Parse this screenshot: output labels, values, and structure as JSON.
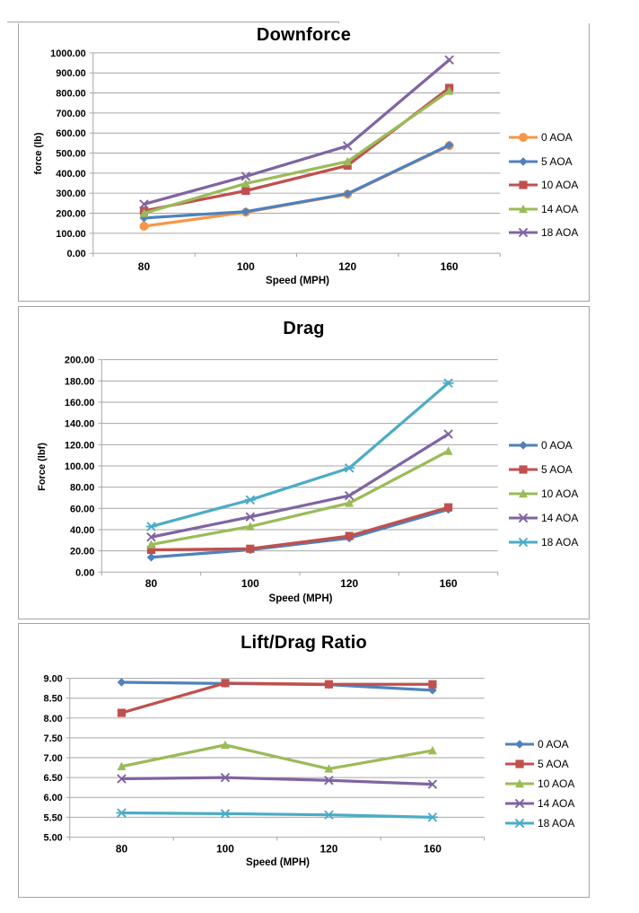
{
  "chart_data": [
    {
      "type": "line",
      "title": "Downforce",
      "xlabel": "Speed (MPH)",
      "ylabel": "force (lb)",
      "categories": [
        "80",
        "100",
        "120",
        "160"
      ],
      "ylim": [
        0,
        1000
      ],
      "ytick_step": 100,
      "ytick_decimals": 2,
      "grid": true,
      "legend_position": "right",
      "series": [
        {
          "name": "0 AOA",
          "color": "#F79646",
          "marker": "circle",
          "values": [
            135,
            205,
            295,
            537
          ]
        },
        {
          "name": "5 AOA",
          "color": "#4F81BD",
          "marker": "diamond",
          "values": [
            176,
            208,
            297,
            540
          ]
        },
        {
          "name": "10 AOA",
          "color": "#C0504D",
          "marker": "square",
          "values": [
            212,
            312,
            438,
            825
          ]
        },
        {
          "name": "14 AOA",
          "color": "#9BBB59",
          "marker": "triangle",
          "values": [
            200,
            348,
            458,
            810
          ]
        },
        {
          "name": "18 AOA",
          "color": "#8064A2",
          "marker": "x",
          "values": [
            245,
            384,
            536,
            965
          ]
        }
      ]
    },
    {
      "type": "line",
      "title": "Drag",
      "xlabel": "Speed (MPH)",
      "ylabel": "Force (lbf)",
      "categories": [
        "80",
        "100",
        "120",
        "160"
      ],
      "ylim": [
        0,
        200
      ],
      "ytick_step": 20,
      "ytick_decimals": 2,
      "grid": true,
      "legend_position": "right",
      "series": [
        {
          "name": "0 AOA",
          "color": "#4F81BD",
          "marker": "diamond",
          "values": [
            14,
            21,
            32,
            59
          ]
        },
        {
          "name": "5 AOA",
          "color": "#C0504D",
          "marker": "square",
          "values": [
            21,
            22,
            34,
            61
          ]
        },
        {
          "name": "10 AOA",
          "color": "#9BBB59",
          "marker": "triangle",
          "values": [
            26,
            43,
            65,
            114
          ]
        },
        {
          "name": "14 AOA",
          "color": "#8064A2",
          "marker": "x",
          "values": [
            33,
            52,
            72,
            130
          ]
        },
        {
          "name": "18 AOA",
          "color": "#4BACC6",
          "marker": "star",
          "values": [
            43,
            68,
            98,
            178
          ]
        }
      ]
    },
    {
      "type": "line",
      "title": "Lift/Drag Ratio",
      "xlabel": "Speed (MPH)",
      "ylabel": "",
      "categories": [
        "80",
        "100",
        "120",
        "160"
      ],
      "ylim": [
        5,
        9
      ],
      "ytick_step": 0.5,
      "ytick_decimals": 2,
      "grid": true,
      "legend_position": "right",
      "series": [
        {
          "name": "0 AOA",
          "color": "#4F81BD",
          "marker": "diamond",
          "values": [
            8.9,
            8.87,
            8.84,
            8.7
          ]
        },
        {
          "name": "5 AOA",
          "color": "#C0504D",
          "marker": "square",
          "values": [
            8.13,
            8.88,
            8.85,
            8.85
          ]
        },
        {
          "name": "10 AOA",
          "color": "#9BBB59",
          "marker": "triangle",
          "values": [
            6.78,
            7.32,
            6.72,
            7.18
          ]
        },
        {
          "name": "14 AOA",
          "color": "#8064A2",
          "marker": "x",
          "values": [
            6.47,
            6.5,
            6.43,
            6.33
          ]
        },
        {
          "name": "18 AOA",
          "color": "#4BACC6",
          "marker": "star",
          "values": [
            5.61,
            5.59,
            5.56,
            5.5
          ]
        }
      ]
    }
  ]
}
